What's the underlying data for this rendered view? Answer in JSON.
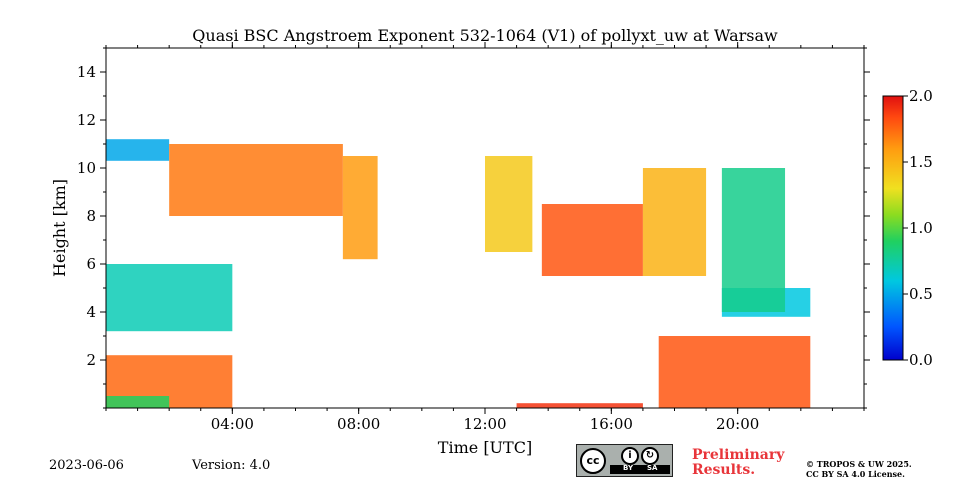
{
  "chart_data": {
    "type": "heatmap",
    "title": "Quasi BSC Angstroem Exponent 532-1064 (V1) of pollyxt_uw at Warsaw",
    "xlabel": "Time [UTC]",
    "ylabel": "Height [km]",
    "xlim_hours": [
      0,
      24
    ],
    "ylim_km": [
      0,
      15
    ],
    "x_ticks": [
      {
        "hour": 4,
        "label": "04:00"
      },
      {
        "hour": 8,
        "label": "08:00"
      },
      {
        "hour": 12,
        "label": "12:00"
      },
      {
        "hour": 16,
        "label": "16:00"
      },
      {
        "hour": 20,
        "label": "20:00"
      }
    ],
    "y_ticks": [
      {
        "km": 2,
        "label": "2"
      },
      {
        "km": 4,
        "label": "4"
      },
      {
        "km": 6,
        "label": "6"
      },
      {
        "km": 8,
        "label": "8"
      },
      {
        "km": 10,
        "label": "10"
      },
      {
        "km": 12,
        "label": "12"
      },
      {
        "km": 14,
        "label": "14"
      }
    ],
    "colorbar": {
      "range": [
        0.0,
        2.0
      ],
      "ticks": [
        {
          "value": 0.0,
          "label": "0.0"
        },
        {
          "value": 0.5,
          "label": "0.5"
        },
        {
          "value": 1.0,
          "label": "1.0"
        },
        {
          "value": 1.5,
          "label": "1.5"
        },
        {
          "value": 2.0,
          "label": "2.0"
        }
      ],
      "colormap": "jet"
    },
    "data_regions": [
      {
        "name": "boundary-layer-night",
        "t0": 0.0,
        "t1": 4.0,
        "h0": 0.0,
        "h1": 2.2,
        "value": 1.75
      },
      {
        "name": "boundary-layer-night-base",
        "t0": 0.0,
        "t1": 2.0,
        "h0": 0.0,
        "h1": 0.5,
        "value": 0.9
      },
      {
        "name": "boundary-layer-evening",
        "t0": 17.5,
        "t1": 22.3,
        "h0": 0.0,
        "h1": 3.0,
        "value": 1.8
      },
      {
        "name": "low-aerosol-noon",
        "t0": 13.0,
        "t1": 17.0,
        "h0": 0.0,
        "h1": 0.2,
        "value": 1.9
      },
      {
        "name": "lofted-layer-night",
        "t0": 0.0,
        "t1": 4.0,
        "h0": 3.2,
        "h1": 6.0,
        "value": 0.7
      },
      {
        "name": "lofted-layer-evening",
        "t0": 19.5,
        "t1": 22.3,
        "h0": 3.8,
        "h1": 5.0,
        "value": 0.6
      },
      {
        "name": "cirrus-early",
        "t0": 0.0,
        "t1": 2.0,
        "h0": 10.3,
        "h1": 11.2,
        "value": 0.5
      },
      {
        "name": "cirrus-plume-1",
        "t0": 2.0,
        "t1": 7.5,
        "h0": 8.0,
        "h1": 11.0,
        "value": 1.7
      },
      {
        "name": "cirrus-plume-2",
        "t0": 7.5,
        "t1": 8.6,
        "h0": 6.2,
        "h1": 10.5,
        "value": 1.6
      },
      {
        "name": "cirrus-noon",
        "t0": 12.0,
        "t1": 13.5,
        "h0": 6.5,
        "h1": 10.5,
        "value": 1.4
      },
      {
        "name": "cirrus-afternoon",
        "t0": 13.8,
        "t1": 17.0,
        "h0": 5.5,
        "h1": 8.5,
        "value": 1.8
      },
      {
        "name": "cirrus-evening",
        "t0": 17.0,
        "t1": 19.0,
        "h0": 5.5,
        "h1": 10.0,
        "value": 1.5
      },
      {
        "name": "cirrus-late",
        "t0": 19.5,
        "t1": 21.5,
        "h0": 4.0,
        "h1": 10.0,
        "value": 0.8
      }
    ]
  },
  "footer": {
    "date": "2023-06-06",
    "version": "Version: 4.0",
    "preliminary_line1": "Preliminary",
    "preliminary_line2": "Results.",
    "copyright_line1": "© TROPOS & UW 2025.",
    "copyright_line2": "CC BY SA 4.0 License.",
    "license_badge": {
      "main": "cc",
      "by": "BY",
      "sa": "SA"
    }
  }
}
